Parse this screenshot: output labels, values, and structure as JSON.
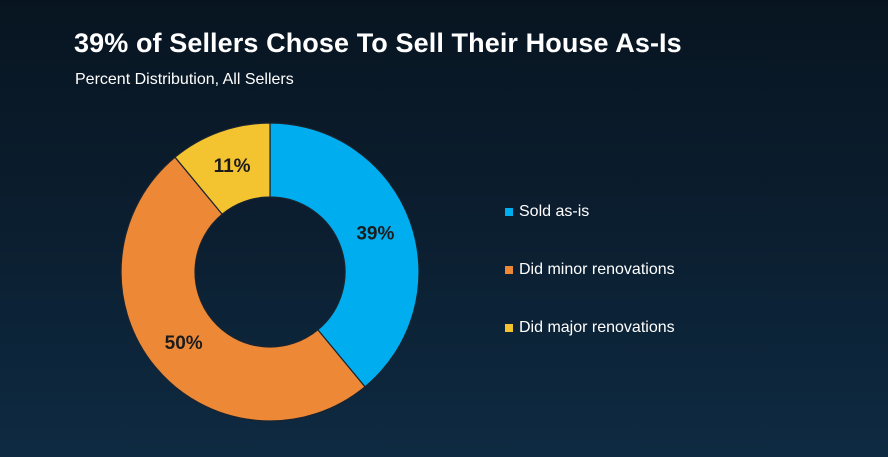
{
  "title": "39% of Sellers Chose To Sell Their House As-Is",
  "subtitle": "Percent Distribution, All Sellers",
  "chart_data": {
    "type": "pie",
    "variant": "donut",
    "title": "39% of Sellers Chose To Sell Their House As-Is",
    "subtitle": "Percent Distribution, All Sellers",
    "categories": [
      "Sold as-is",
      "Did minor renovations",
      "Did major renovations"
    ],
    "values": [
      39,
      50,
      11
    ],
    "labels": [
      "39%",
      "50%",
      "11%"
    ],
    "colors": [
      "#00aeef",
      "#ed8936",
      "#f4c430"
    ],
    "legend_position": "right"
  }
}
